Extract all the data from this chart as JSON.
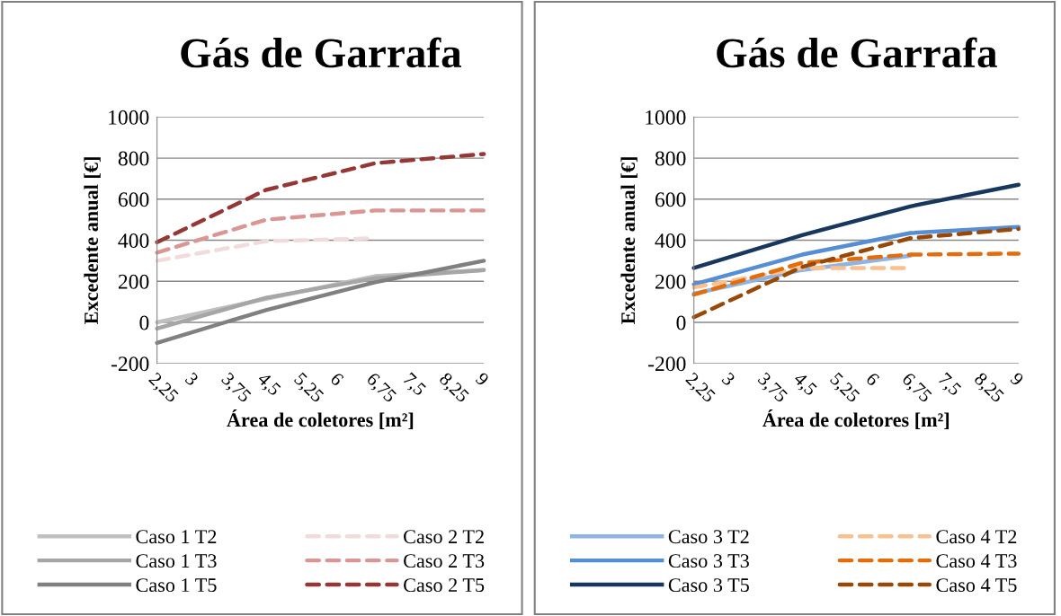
{
  "chart_data": [
    {
      "type": "line",
      "title": "Gás de Garrafa",
      "xlabel": "Área de coletores [m²]",
      "ylabel": "Excedente anual [€]",
      "categories": [
        "2,25",
        "3",
        "3,75",
        "4,5",
        "5,25",
        "6",
        "6,75",
        "7,5",
        "8,25",
        "9"
      ],
      "ylim": [
        -200,
        1000
      ],
      "yticks": [
        -200,
        0,
        200,
        400,
        600,
        800,
        1000
      ],
      "grid": "y",
      "legend": "bottom",
      "series": [
        {
          "name": "Caso 1 T2",
          "color": "#c0c0c0",
          "line_style": "solid",
          "x": [
            "2,25",
            "4,5",
            "6,75",
            "9"
          ],
          "values": [
            0,
            115,
            225,
            255
          ]
        },
        {
          "name": "Caso 1 T3",
          "color": "#a6a6a6",
          "line_style": "solid",
          "x": [
            "2,25",
            "4,5",
            "6,75",
            "9"
          ],
          "values": [
            -30,
            120,
            215,
            255
          ]
        },
        {
          "name": "Caso 1 T5",
          "color": "#808080",
          "line_style": "solid",
          "x": [
            "2,25",
            "4,5",
            "6,75",
            "9"
          ],
          "values": [
            -100,
            60,
            195,
            300
          ]
        },
        {
          "name": "Caso 2 T2",
          "color": "#f2dcdb",
          "line_style": "dashed",
          "x": [
            "2,25",
            "4,5",
            "6,75"
          ],
          "values": [
            300,
            395,
            410
          ]
        },
        {
          "name": "Caso 2 T3",
          "color": "#d99694",
          "line_style": "dashed",
          "x": [
            "2,25",
            "4,5",
            "6,75",
            "9"
          ],
          "values": [
            340,
            500,
            545,
            545
          ]
        },
        {
          "name": "Caso 2 T5",
          "color": "#953735",
          "line_style": "dashed",
          "x": [
            "2,25",
            "4,5",
            "6,75",
            "9"
          ],
          "values": [
            390,
            645,
            775,
            820
          ]
        }
      ]
    },
    {
      "type": "line",
      "title": "Gás de Garrafa",
      "xlabel": "Área de coletores [m²]",
      "ylabel": "Excedente anual [€]",
      "categories": [
        "2,25",
        "3",
        "3,75",
        "4,5",
        "5,25",
        "6",
        "6,75",
        "7,5",
        "8,25",
        "9"
      ],
      "ylim": [
        -200,
        1000
      ],
      "yticks": [
        -200,
        0,
        200,
        400,
        600,
        800,
        1000
      ],
      "grid": "y",
      "legend": "bottom",
      "series": [
        {
          "name": "Caso 3 T2",
          "color": "#8db4e2",
          "line_style": "solid",
          "x": [
            "2,25",
            "4,5",
            "6,75"
          ],
          "values": [
            140,
            255,
            325
          ]
        },
        {
          "name": "Caso 3 T3",
          "color": "#558ed5",
          "line_style": "solid",
          "x": [
            "2,25",
            "4,5",
            "6,75",
            "9"
          ],
          "values": [
            185,
            330,
            435,
            465
          ]
        },
        {
          "name": "Caso 3 T5",
          "color": "#17375e",
          "line_style": "solid",
          "x": [
            "2,25",
            "4,5",
            "6,75",
            "9"
          ],
          "values": [
            265,
            425,
            565,
            670
          ]
        },
        {
          "name": "Caso 4 T2",
          "color": "#fac090",
          "line_style": "dashed",
          "x": [
            "2,25",
            "4,5",
            "6,75"
          ],
          "values": [
            170,
            265,
            265
          ]
        },
        {
          "name": "Caso 4 T3",
          "color": "#e46c0a",
          "line_style": "dashed",
          "x": [
            "2,25",
            "4,5",
            "6,75",
            "9"
          ],
          "values": [
            135,
            290,
            330,
            335
          ]
        },
        {
          "name": "Caso 4 T5",
          "color": "#984807",
          "line_style": "dashed",
          "x": [
            "2,25",
            "4,5",
            "6,75",
            "9"
          ],
          "values": [
            25,
            270,
            410,
            455
          ]
        }
      ]
    }
  ]
}
